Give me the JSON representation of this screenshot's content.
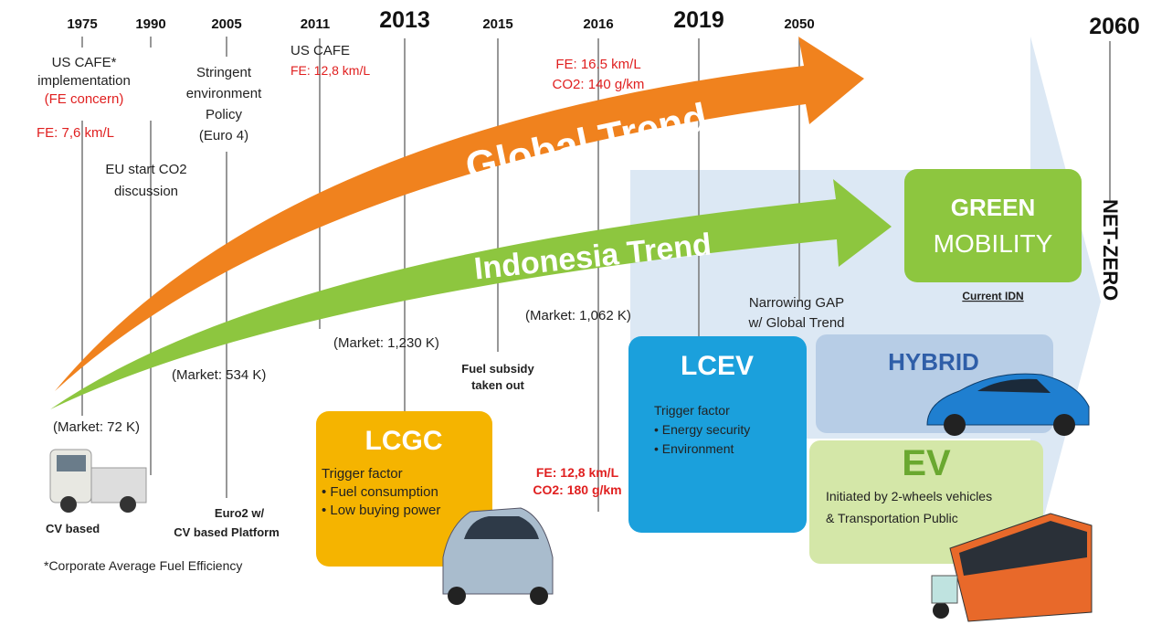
{
  "years": [
    "1975",
    "1990",
    "2005",
    "2011",
    "2013",
    "2015",
    "2016",
    "2019",
    "2050",
    "2060"
  ],
  "trends": {
    "global": "Global Trend",
    "indonesia": "Indonesia Trend"
  },
  "notes": {
    "us_cafe_1975": {
      "lines": [
        "US CAFE*",
        "implementation",
        "(FE concern)"
      ],
      "fe": "FE: 7,6 km/L"
    },
    "eu": [
      "EU start CO2",
      "discussion"
    ],
    "policy_2005": [
      "Stringent",
      "environment",
      "Policy",
      "(Euro 4)"
    ],
    "us_cafe_2011": {
      "title": "US CAFE",
      "fe": "FE: 12,8 km/L"
    },
    "target_2016": [
      "FE: 16.5 km/L",
      "CO2: 140 g/km"
    ],
    "markets": [
      "(Market: 72 K)",
      "(Market: 534 K)",
      "(Market: 1,230 K)",
      "(Market: 1,062 K)"
    ],
    "fuel_subsidy": [
      "Fuel subsidy",
      "taken out"
    ],
    "narrowing": [
      "Narrowing GAP",
      "w/ Global Trend"
    ],
    "euro2": [
      "Euro2 w/",
      "CV based Platform"
    ],
    "cv_based": "CV based",
    "footnote": "*Corporate Average Fuel Efficiency",
    "lcgc_fe": [
      "FE: 12,8 km/L",
      "CO2: 180 g/km"
    ]
  },
  "boxes": {
    "lcgc": {
      "title": "LCGC",
      "lines": [
        "Trigger factor",
        "• Fuel consumption",
        "• Low buying power"
      ]
    },
    "lcev": {
      "title": "LCEV",
      "lines": [
        "Trigger factor",
        "• Energy security",
        "• Environment"
      ]
    },
    "hybrid": {
      "title": "HYBRID"
    },
    "ev": {
      "title": "EV",
      "lines": [
        "Initiated by 2-wheels vehicles",
        "& Transportation Public"
      ]
    },
    "green": {
      "title": [
        "GREEN",
        "MOBILITY"
      ],
      "caption": "Current IDN"
    }
  },
  "net_zero": "NET-ZERO"
}
